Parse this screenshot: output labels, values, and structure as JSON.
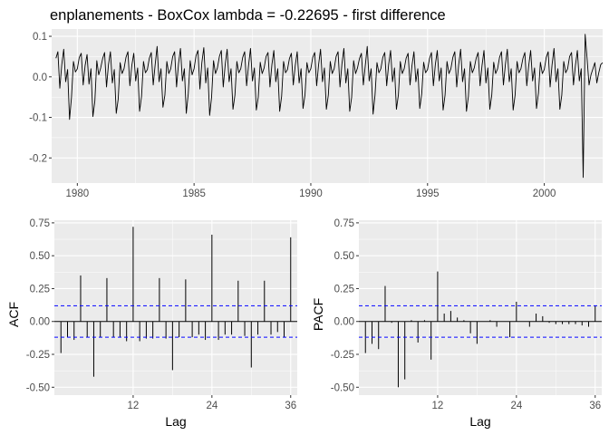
{
  "colors": {
    "panel_background": "#EBEBEB",
    "grid_major": "#FFFFFF",
    "series_line": "#000000",
    "confidence_band": "#0000FF",
    "tick_text": "#4D4D4D"
  },
  "chart_data": [
    {
      "type": "line",
      "title": "enplanements - BoxCox lambda =  -0.22695  - first difference",
      "xlabel": "",
      "ylabel": "",
      "xlim": [
        1978.9,
        2002.5
      ],
      "ylim": [
        -0.262,
        0.118
      ],
      "x_ticks": [
        1980,
        1985,
        1990,
        1995,
        2000
      ],
      "x_tick_labels": [
        "1980",
        "1985",
        "1990",
        "1995",
        "2000"
      ],
      "y_ticks": [
        0.1,
        0.0,
        -0.1,
        -0.2
      ],
      "y_tick_labels": [
        "0.1",
        "0.0",
        "-0.1",
        "-0.2"
      ],
      "grid": true,
      "series": [
        {
          "x_start": 1979.0833,
          "x_step": 0.0833333,
          "values": [
            0.046,
            0.062,
            -0.028,
            0.03,
            0.068,
            -0.012,
            0.018,
            -0.105,
            -0.05,
            0.038,
            0.012,
            0.02,
            0.048,
            0.058,
            -0.02,
            0.028,
            0.055,
            -0.018,
            0.02,
            -0.098,
            -0.06,
            0.04,
            0.005,
            0.022,
            0.045,
            0.06,
            -0.025,
            0.03,
            0.062,
            -0.015,
            0.018,
            -0.09,
            -0.055,
            0.035,
            0.008,
            0.02,
            0.048,
            0.062,
            -0.022,
            0.028,
            0.058,
            -0.01,
            0.022,
            -0.085,
            -0.048,
            0.038,
            0.01,
            0.018,
            0.046,
            0.06,
            -0.02,
            0.03,
            0.075,
            -0.012,
            0.02,
            -0.075,
            -0.045,
            0.038,
            0.008,
            0.02,
            0.05,
            0.062,
            -0.025,
            0.032,
            0.07,
            -0.01,
            0.02,
            -0.09,
            -0.042,
            0.04,
            0.005,
            0.02,
            0.052,
            0.065,
            -0.03,
            0.035,
            0.072,
            -0.015,
            0.022,
            -0.095,
            -0.05,
            0.04,
            0.008,
            0.022,
            0.05,
            0.065,
            -0.025,
            0.03,
            0.068,
            -0.012,
            0.02,
            -0.08,
            -0.045,
            0.038,
            0.01,
            0.02,
            0.048,
            0.062,
            -0.022,
            0.028,
            0.07,
            -0.01,
            0.022,
            -0.082,
            -0.05,
            0.036,
            0.008,
            0.022,
            0.05,
            0.06,
            -0.025,
            0.03,
            0.065,
            -0.012,
            0.02,
            -0.085,
            -0.048,
            0.038,
            0.01,
            0.018,
            0.045,
            0.058,
            -0.02,
            0.028,
            0.062,
            -0.015,
            0.02,
            -0.078,
            -0.045,
            0.035,
            0.01,
            0.02,
            0.048,
            0.06,
            -0.022,
            0.03,
            0.068,
            -0.012,
            0.022,
            -0.08,
            -0.045,
            0.038,
            0.008,
            0.02,
            0.05,
            0.062,
            -0.025,
            0.032,
            0.07,
            -0.015,
            0.02,
            -0.085,
            -0.05,
            0.04,
            0.008,
            0.022,
            0.045,
            0.058,
            -0.02,
            0.028,
            0.075,
            -0.01,
            0.02,
            -0.092,
            -0.045,
            0.035,
            0.01,
            0.02,
            0.048,
            0.06,
            -0.022,
            0.03,
            0.065,
            -0.012,
            0.022,
            -0.08,
            -0.045,
            0.038,
            0.008,
            0.02,
            0.046,
            0.058,
            -0.02,
            0.028,
            0.062,
            -0.012,
            0.02,
            -0.078,
            -0.042,
            0.036,
            0.01,
            0.018,
            0.045,
            0.06,
            -0.022,
            0.03,
            0.065,
            -0.01,
            0.022,
            -0.082,
            -0.045,
            0.038,
            0.008,
            0.02,
            0.048,
            0.062,
            -0.025,
            0.03,
            0.068,
            -0.012,
            0.02,
            -0.085,
            -0.048,
            0.038,
            0.01,
            0.022,
            0.046,
            0.06,
            -0.022,
            0.028,
            0.065,
            -0.015,
            0.022,
            -0.08,
            -0.045,
            0.036,
            0.008,
            0.02,
            0.048,
            0.062,
            -0.02,
            0.03,
            0.068,
            -0.012,
            0.02,
            -0.082,
            -0.045,
            0.038,
            0.01,
            0.02,
            0.045,
            0.06,
            -0.022,
            0.028,
            0.065,
            -0.01,
            0.022,
            -0.078,
            -0.04,
            0.036,
            0.008,
            0.018,
            0.048,
            0.062,
            -0.025,
            0.03,
            0.07,
            -0.012,
            0.02,
            -0.08,
            -0.045,
            0.038,
            0.01,
            0.02,
            0.05,
            0.06,
            -0.02,
            0.028,
            0.065,
            -0.01,
            0.02,
            -0.248,
            0.105,
            0.045,
            -0.02,
            0.005,
            0.02,
            0.035,
            -0.015,
            0.01,
            0.03,
            0.035
          ]
        }
      ]
    },
    {
      "type": "bar",
      "xlabel": "Lag",
      "ylabel": "ACF",
      "xlim": [
        0,
        37
      ],
      "ylim": [
        -0.56,
        0.77
      ],
      "x_ticks": [
        12,
        24,
        36
      ],
      "x_tick_labels": [
        "12",
        "24",
        "36"
      ],
      "y_ticks": [
        0.75,
        0.5,
        0.25,
        0.0,
        -0.25,
        -0.5
      ],
      "y_tick_labels": [
        "0.75",
        "0.50",
        "0.25",
        "0.00",
        "-0.25",
        "-0.50"
      ],
      "grid": true,
      "lags": [
        1,
        2,
        3,
        4,
        5,
        6,
        7,
        8,
        9,
        10,
        11,
        12,
        13,
        14,
        15,
        16,
        17,
        18,
        19,
        20,
        21,
        22,
        23,
        24,
        25,
        26,
        27,
        28,
        29,
        30,
        31,
        32,
        33,
        34,
        35,
        36
      ],
      "values": [
        -0.24,
        -0.12,
        -0.14,
        0.35,
        -0.12,
        -0.42,
        -0.12,
        0.33,
        -0.12,
        -0.12,
        -0.15,
        0.72,
        -0.15,
        -0.13,
        -0.13,
        0.33,
        -0.13,
        -0.37,
        -0.12,
        0.32,
        -0.12,
        -0.1,
        -0.14,
        0.66,
        -0.14,
        -0.1,
        -0.1,
        0.31,
        -0.11,
        -0.35,
        -0.1,
        0.31,
        -0.1,
        -0.08,
        -0.12,
        0.64
      ],
      "confidence_bound": 0.12
    },
    {
      "type": "bar",
      "xlabel": "Lag",
      "ylabel": "PACF",
      "xlim": [
        0,
        37
      ],
      "ylim": [
        -0.56,
        0.77
      ],
      "x_ticks": [
        12,
        24,
        36
      ],
      "x_tick_labels": [
        "12",
        "24",
        "36"
      ],
      "y_ticks": [
        0.75,
        0.5,
        0.25,
        0.0,
        -0.25,
        -0.5
      ],
      "y_tick_labels": [
        "0.75",
        "0.50",
        "0.25",
        "0.00",
        "-0.25",
        "-0.50"
      ],
      "grid": true,
      "lags": [
        1,
        2,
        3,
        4,
        5,
        6,
        7,
        8,
        9,
        10,
        11,
        12,
        13,
        14,
        15,
        16,
        17,
        18,
        19,
        20,
        21,
        22,
        23,
        24,
        25,
        26,
        27,
        28,
        29,
        30,
        31,
        32,
        33,
        34,
        35,
        36
      ],
      "values": [
        -0.24,
        -0.17,
        -0.21,
        0.27,
        -0.01,
        -0.5,
        -0.44,
        0.01,
        -0.16,
        0.01,
        -0.29,
        0.38,
        0.06,
        0.08,
        0.03,
        0.01,
        -0.09,
        -0.17,
        0.0,
        0.01,
        -0.04,
        0.0,
        -0.12,
        0.15,
        0.0,
        -0.04,
        0.06,
        0.04,
        -0.01,
        -0.02,
        -0.02,
        -0.02,
        -0.02,
        -0.03,
        -0.04,
        0.12
      ],
      "confidence_bound": 0.12
    }
  ]
}
